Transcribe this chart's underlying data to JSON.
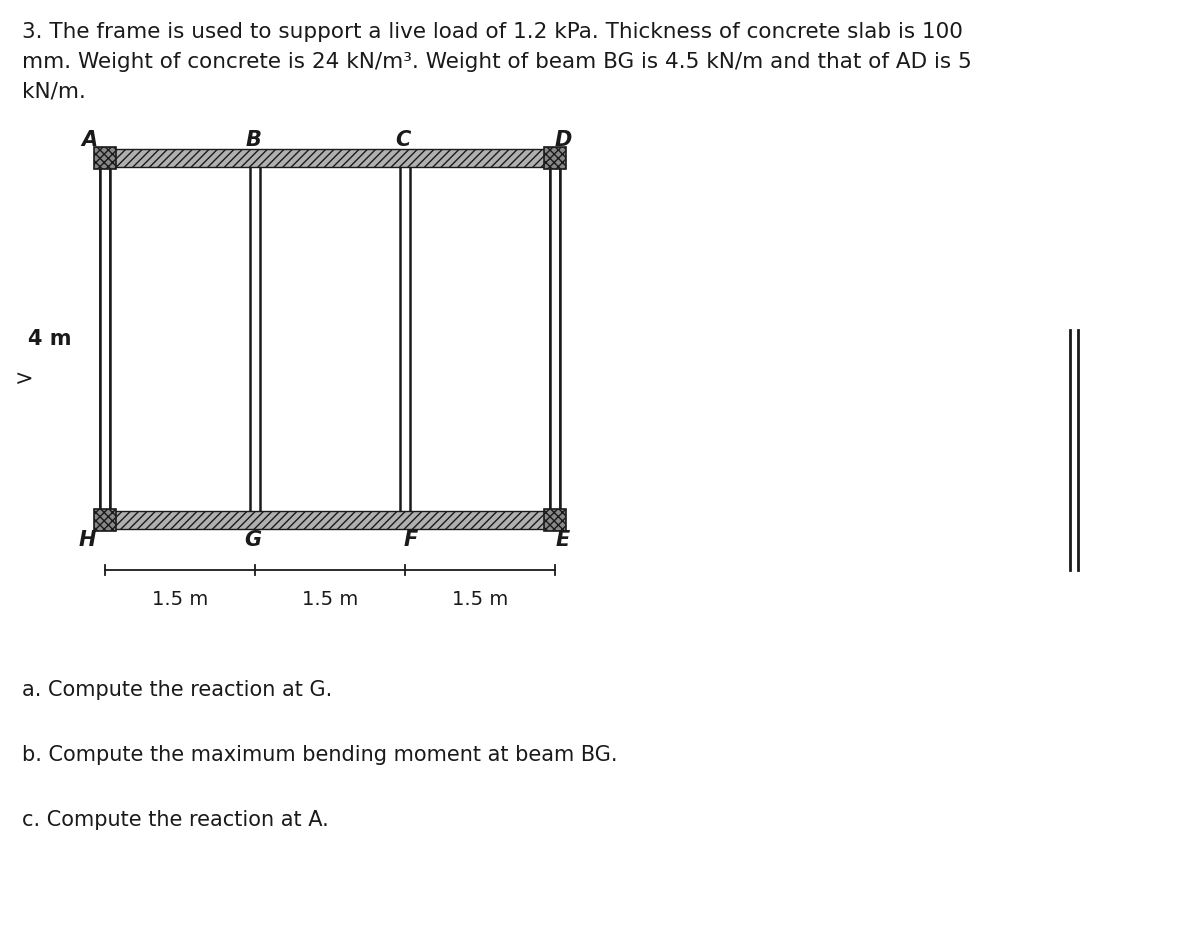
{
  "title_text": "3. The frame is used to support a live load of 1.2 kPa. Thickness of concrete slab is 100\nmm. Weight of concrete is 24 kN/m³. Weight of beam BG is 4.5 kN/m and that of AD is 5\nkN/m.",
  "questions": [
    "a. Compute the reaction at G.",
    "b. Compute the maximum bending moment at beam BG.",
    "c. Compute the reaction at A."
  ],
  "dim_labels": {
    "bottom_1": "1.5 m",
    "bottom_2": "1.5 m",
    "bottom_3": "1.5 m",
    "left": "4 m"
  },
  "bg_color": "#ffffff",
  "frame_color": "#1a1a1a",
  "text_color": "#1a1a1a",
  "title_fontsize": 15.5,
  "label_fontsize": 14,
  "dim_fontsize": 13,
  "vline_color": "#333333"
}
